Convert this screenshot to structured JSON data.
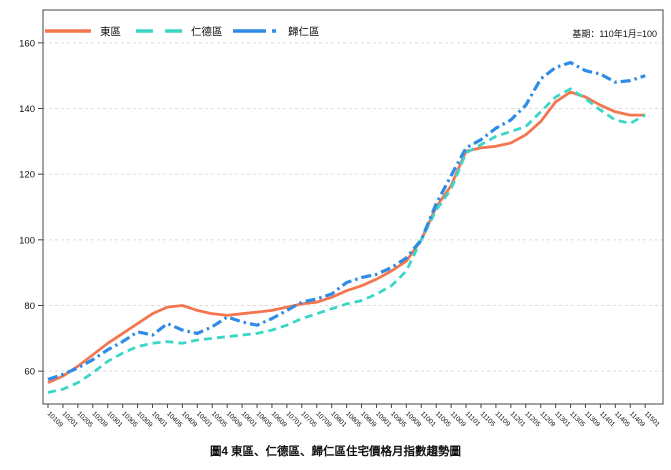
{
  "figure": {
    "caption": "圖4 東區、仁德區、歸仁區住宅價格月指數趨勢圖",
    "base_note": "基期：110年1月=100"
  },
  "chart_data": {
    "type": "line",
    "title": "圖4 東區、仁德區、歸仁區住宅價格月指數趨勢圖",
    "xlabel": "",
    "ylabel": "",
    "ylim": [
      50,
      170
    ],
    "yticks": [
      60,
      80,
      100,
      120,
      140,
      160
    ],
    "grid": "horizontal-dashed",
    "legend_position": "top-left-inside",
    "base_period_note": "基期：110年1月=100",
    "x_labels": [
      "10109",
      "10201",
      "10205",
      "10209",
      "10301",
      "10305",
      "10309",
      "10401",
      "10405",
      "10409",
      "10501",
      "10505",
      "10509",
      "10601",
      "10605",
      "10609",
      "10701",
      "10705",
      "10709",
      "10801",
      "10805",
      "10809",
      "10901",
      "10905",
      "10909",
      "11001",
      "11005",
      "11009",
      "11101",
      "11105",
      "11109",
      "11201",
      "11205",
      "11209",
      "11301",
      "11305",
      "11309",
      "11401",
      "11405",
      "11409",
      "11501"
    ],
    "series": [
      {
        "name": "東區",
        "color": "#F4764F",
        "style": "solid",
        "values": [
          56.5,
          58.5,
          61.5,
          65,
          68.5,
          71.5,
          74.5,
          77.5,
          79.5,
          80,
          78.5,
          77.5,
          77,
          77.5,
          78,
          78.5,
          79.5,
          80.5,
          81,
          82.5,
          84.5,
          86,
          88,
          90.5,
          93.5,
          100,
          110,
          116.5,
          127,
          128,
          128.5,
          129.5,
          132,
          136,
          142,
          145,
          143.5,
          141,
          139,
          138,
          138
        ]
      },
      {
        "name": "仁德區",
        "color": "#3BD6C5",
        "style": "dashed",
        "values": [
          53.5,
          54.5,
          56.5,
          59.5,
          63,
          65.5,
          67.5,
          68.5,
          69,
          68.5,
          69.5,
          70,
          70.5,
          71,
          71.5,
          72.5,
          74,
          76,
          77.5,
          79,
          80.5,
          81.5,
          83.5,
          86,
          90.5,
          100,
          109,
          115.5,
          126.5,
          129,
          131.5,
          133,
          134.5,
          139,
          143.5,
          146,
          143,
          139.5,
          136.5,
          135.5,
          138
        ]
      },
      {
        "name": "歸仁區",
        "color": "#2E8BE6",
        "style": "dash-dot",
        "values": [
          57.5,
          59,
          61,
          63.5,
          66.5,
          69,
          72,
          71,
          74.5,
          72.5,
          71.5,
          73.5,
          76.5,
          75,
          74,
          76,
          78.5,
          81,
          82,
          83.5,
          87,
          88.5,
          89.5,
          91.5,
          94.5,
          100,
          111,
          119.5,
          128,
          130.5,
          134,
          136.5,
          141,
          149,
          152.5,
          154,
          151.5,
          150.5,
          148,
          148.5,
          150
        ]
      }
    ]
  }
}
